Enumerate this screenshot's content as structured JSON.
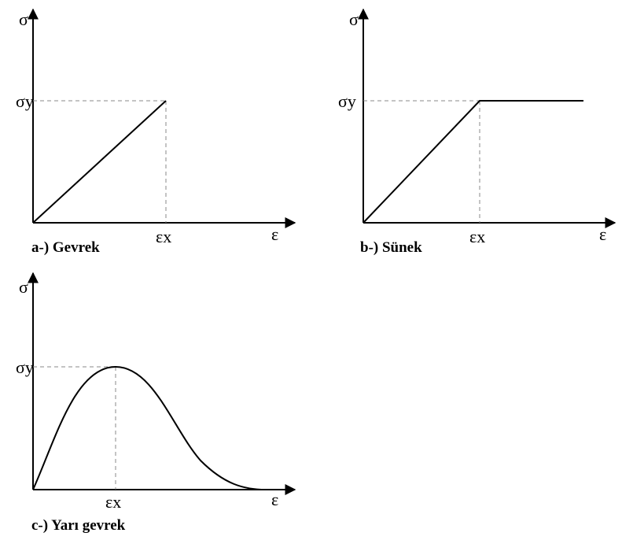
{
  "panels": [
    {
      "y_label": "σ",
      "y_mark": "σy",
      "x_mark": "εx",
      "x_label": "ε",
      "caption": "a-) Gevrek"
    },
    {
      "y_label": "σ",
      "y_mark": "σy",
      "x_mark": "εx",
      "x_label": "ε",
      "caption": "b-) Sünek"
    },
    {
      "y_label": "σ",
      "y_mark": "σy",
      "x_mark": "εx",
      "x_label": "ε",
      "caption": "c-) Yarı gevrek"
    }
  ]
}
